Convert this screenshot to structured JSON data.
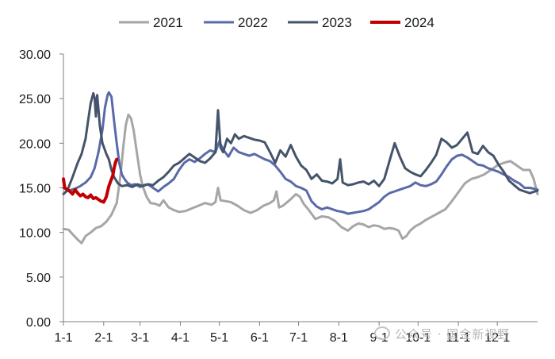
{
  "chart_data": {
    "type": "line",
    "title": "",
    "xlabel": "",
    "ylabel": "",
    "ylim": [
      0,
      30
    ],
    "yticks": [
      "0.00",
      "5.00",
      "10.00",
      "15.00",
      "20.00",
      "25.00",
      "30.00"
    ],
    "x_unit": "day of year",
    "x_tick_labels": [
      "1-1",
      "2-1",
      "3-1",
      "4-1",
      "5-1",
      "6-1",
      "7-1",
      "8-1",
      "9-1",
      "10-1",
      "11-1",
      "12-1"
    ],
    "x_tick_days": [
      1,
      32,
      60,
      91,
      121,
      152,
      182,
      213,
      244,
      274,
      305,
      335
    ],
    "xlim": [
      1,
      366
    ],
    "grid": false,
    "legend_position": "top",
    "series": [
      {
        "name": "2021",
        "color": "#a6a6a6",
        "points": [
          [
            1,
            10.4
          ],
          [
            5,
            10.3
          ],
          [
            8,
            9.8
          ],
          [
            12,
            9.2
          ],
          [
            15,
            8.8
          ],
          [
            18,
            9.6
          ],
          [
            22,
            10.0
          ],
          [
            26,
            10.5
          ],
          [
            30,
            10.7
          ],
          [
            34,
            11.2
          ],
          [
            38,
            12.0
          ],
          [
            42,
            13.3
          ],
          [
            45,
            16.5
          ],
          [
            47,
            19.5
          ],
          [
            49,
            22.0
          ],
          [
            51,
            23.2
          ],
          [
            53,
            22.8
          ],
          [
            55,
            21.5
          ],
          [
            57,
            19.5
          ],
          [
            60,
            16.5
          ],
          [
            62,
            15.2
          ],
          [
            65,
            14.0
          ],
          [
            68,
            13.3
          ],
          [
            72,
            13.2
          ],
          [
            75,
            13.0
          ],
          [
            78,
            13.6
          ],
          [
            82,
            12.8
          ],
          [
            86,
            12.5
          ],
          [
            90,
            12.3
          ],
          [
            95,
            12.4
          ],
          [
            100,
            12.7
          ],
          [
            105,
            13.0
          ],
          [
            110,
            13.3
          ],
          [
            115,
            13.1
          ],
          [
            118,
            13.4
          ],
          [
            120,
            15.0
          ],
          [
            122,
            13.6
          ],
          [
            126,
            13.5
          ],
          [
            130,
            13.4
          ],
          [
            135,
            13.0
          ],
          [
            140,
            12.5
          ],
          [
            145,
            12.2
          ],
          [
            150,
            12.5
          ],
          [
            155,
            13.0
          ],
          [
            160,
            13.3
          ],
          [
            163,
            13.6
          ],
          [
            165,
            14.6
          ],
          [
            167,
            12.8
          ],
          [
            170,
            13.0
          ],
          [
            175,
            13.6
          ],
          [
            180,
            14.3
          ],
          [
            183,
            14.0
          ],
          [
            186,
            13.2
          ],
          [
            190,
            12.5
          ],
          [
            195,
            11.5
          ],
          [
            200,
            11.8
          ],
          [
            205,
            11.7
          ],
          [
            210,
            11.3
          ],
          [
            215,
            10.6
          ],
          [
            220,
            10.2
          ],
          [
            224,
            10.7
          ],
          [
            228,
            11.0
          ],
          [
            232,
            10.9
          ],
          [
            236,
            10.6
          ],
          [
            240,
            10.8
          ],
          [
            244,
            10.7
          ],
          [
            248,
            10.4
          ],
          [
            252,
            10.5
          ],
          [
            256,
            10.4
          ],
          [
            259,
            10.2
          ],
          [
            262,
            9.3
          ],
          [
            265,
            9.6
          ],
          [
            268,
            10.2
          ],
          [
            272,
            10.7
          ],
          [
            276,
            11.0
          ],
          [
            280,
            11.4
          ],
          [
            285,
            11.8
          ],
          [
            290,
            12.2
          ],
          [
            295,
            12.6
          ],
          [
            300,
            13.5
          ],
          [
            305,
            14.5
          ],
          [
            310,
            15.5
          ],
          [
            315,
            16.0
          ],
          [
            320,
            16.2
          ],
          [
            325,
            16.5
          ],
          [
            330,
            17.0
          ],
          [
            335,
            17.5
          ],
          [
            340,
            17.8
          ],
          [
            345,
            18.0
          ],
          [
            350,
            17.5
          ],
          [
            355,
            17.0
          ],
          [
            360,
            17.0
          ],
          [
            363,
            16.0
          ],
          [
            366,
            14.3
          ]
        ]
      },
      {
        "name": "2022",
        "color": "#5a6aa8",
        "points": [
          [
            1,
            15.0
          ],
          [
            5,
            14.7
          ],
          [
            10,
            14.9
          ],
          [
            14,
            15.2
          ],
          [
            18,
            15.6
          ],
          [
            22,
            16.2
          ],
          [
            25,
            17.2
          ],
          [
            28,
            19.0
          ],
          [
            31,
            21.5
          ],
          [
            33,
            24.0
          ],
          [
            35,
            25.4
          ],
          [
            36,
            25.7
          ],
          [
            38,
            25.2
          ],
          [
            40,
            22.5
          ],
          [
            42,
            20.0
          ],
          [
            44,
            17.8
          ],
          [
            46,
            16.5
          ],
          [
            48,
            16.0
          ],
          [
            50,
            15.6
          ],
          [
            53,
            15.3
          ],
          [
            56,
            15.4
          ],
          [
            60,
            15.1
          ],
          [
            63,
            15.3
          ],
          [
            66,
            15.4
          ],
          [
            70,
            15.0
          ],
          [
            74,
            14.6
          ],
          [
            78,
            15.1
          ],
          [
            82,
            15.5
          ],
          [
            86,
            16.0
          ],
          [
            90,
            17.0
          ],
          [
            94,
            17.8
          ],
          [
            98,
            18.2
          ],
          [
            102,
            17.9
          ],
          [
            106,
            18.3
          ],
          [
            110,
            18.8
          ],
          [
            114,
            19.2
          ],
          [
            118,
            19.0
          ],
          [
            121,
            20.2
          ],
          [
            124,
            19.3
          ],
          [
            128,
            18.5
          ],
          [
            132,
            19.5
          ],
          [
            136,
            19.0
          ],
          [
            140,
            18.8
          ],
          [
            144,
            18.6
          ],
          [
            148,
            18.8
          ],
          [
            152,
            18.5
          ],
          [
            156,
            18.2
          ],
          [
            160,
            18.0
          ],
          [
            164,
            17.5
          ],
          [
            168,
            16.8
          ],
          [
            172,
            16.0
          ],
          [
            176,
            15.7
          ],
          [
            180,
            15.2
          ],
          [
            184,
            15.0
          ],
          [
            188,
            14.7
          ],
          [
            192,
            13.5
          ],
          [
            196,
            12.9
          ],
          [
            200,
            12.6
          ],
          [
            204,
            12.8
          ],
          [
            208,
            12.6
          ],
          [
            212,
            12.4
          ],
          [
            216,
            12.3
          ],
          [
            220,
            12.1
          ],
          [
            224,
            12.2
          ],
          [
            228,
            12.3
          ],
          [
            232,
            12.4
          ],
          [
            236,
            12.6
          ],
          [
            240,
            13.0
          ],
          [
            244,
            13.4
          ],
          [
            248,
            14.0
          ],
          [
            252,
            14.4
          ],
          [
            256,
            14.6
          ],
          [
            260,
            14.8
          ],
          [
            264,
            15.0
          ],
          [
            268,
            15.2
          ],
          [
            272,
            15.6
          ],
          [
            276,
            15.3
          ],
          [
            280,
            15.2
          ],
          [
            284,
            15.4
          ],
          [
            288,
            15.7
          ],
          [
            292,
            16.5
          ],
          [
            296,
            17.4
          ],
          [
            300,
            18.2
          ],
          [
            304,
            18.6
          ],
          [
            308,
            18.7
          ],
          [
            312,
            18.4
          ],
          [
            316,
            18.0
          ],
          [
            320,
            17.6
          ],
          [
            324,
            17.5
          ],
          [
            328,
            17.2
          ],
          [
            332,
            17.0
          ],
          [
            336,
            16.8
          ],
          [
            340,
            16.5
          ],
          [
            344,
            16.2
          ],
          [
            348,
            15.8
          ],
          [
            352,
            15.5
          ],
          [
            356,
            15.0
          ],
          [
            360,
            15.0
          ],
          [
            366,
            14.8
          ]
        ]
      },
      {
        "name": "2023",
        "color": "#44546a",
        "points": [
          [
            1,
            14.3
          ],
          [
            4,
            14.7
          ],
          [
            8,
            16.2
          ],
          [
            12,
            17.8
          ],
          [
            15,
            18.8
          ],
          [
            18,
            20.5
          ],
          [
            20,
            22.5
          ],
          [
            22,
            24.5
          ],
          [
            24,
            25.6
          ],
          [
            25,
            25.1
          ],
          [
            26,
            23.0
          ],
          [
            27,
            25.4
          ],
          [
            29,
            22.0
          ],
          [
            31,
            20.0
          ],
          [
            34,
            18.8
          ],
          [
            36,
            18.2
          ],
          [
            38,
            17.0
          ],
          [
            40,
            16.2
          ],
          [
            43,
            15.5
          ],
          [
            46,
            15.2
          ],
          [
            50,
            15.3
          ],
          [
            54,
            15.1
          ],
          [
            58,
            15.4
          ],
          [
            62,
            15.2
          ],
          [
            66,
            15.4
          ],
          [
            70,
            15.3
          ],
          [
            74,
            15.8
          ],
          [
            78,
            16.2
          ],
          [
            82,
            16.8
          ],
          [
            86,
            17.5
          ],
          [
            90,
            17.8
          ],
          [
            94,
            18.3
          ],
          [
            98,
            18.8
          ],
          [
            102,
            18.4
          ],
          [
            106,
            18.0
          ],
          [
            110,
            17.8
          ],
          [
            114,
            18.3
          ],
          [
            118,
            19.0
          ],
          [
            120,
            23.7
          ],
          [
            122,
            19.5
          ],
          [
            124,
            19.0
          ],
          [
            127,
            20.5
          ],
          [
            130,
            20.0
          ],
          [
            133,
            21.0
          ],
          [
            136,
            20.5
          ],
          [
            140,
            20.8
          ],
          [
            144,
            20.6
          ],
          [
            148,
            20.4
          ],
          [
            152,
            20.3
          ],
          [
            156,
            20.1
          ],
          [
            160,
            19.0
          ],
          [
            164,
            17.8
          ],
          [
            168,
            19.2
          ],
          [
            172,
            18.5
          ],
          [
            176,
            19.8
          ],
          [
            180,
            18.5
          ],
          [
            184,
            17.5
          ],
          [
            188,
            17.0
          ],
          [
            192,
            16.0
          ],
          [
            196,
            16.5
          ],
          [
            200,
            15.8
          ],
          [
            204,
            15.7
          ],
          [
            208,
            15.5
          ],
          [
            212,
            16.0
          ],
          [
            214,
            18.2
          ],
          [
            216,
            15.6
          ],
          [
            220,
            15.3
          ],
          [
            224,
            15.4
          ],
          [
            228,
            15.6
          ],
          [
            232,
            15.7
          ],
          [
            236,
            15.4
          ],
          [
            240,
            15.8
          ],
          [
            244,
            15.2
          ],
          [
            248,
            16.0
          ],
          [
            252,
            18.0
          ],
          [
            256,
            20.0
          ],
          [
            260,
            18.5
          ],
          [
            264,
            17.2
          ],
          [
            268,
            16.8
          ],
          [
            272,
            16.5
          ],
          [
            276,
            16.3
          ],
          [
            280,
            17.0
          ],
          [
            284,
            17.8
          ],
          [
            288,
            18.7
          ],
          [
            292,
            20.5
          ],
          [
            296,
            20.1
          ],
          [
            300,
            19.5
          ],
          [
            304,
            19.8
          ],
          [
            308,
            20.5
          ],
          [
            312,
            21.2
          ],
          [
            316,
            19.0
          ],
          [
            320,
            18.8
          ],
          [
            324,
            19.7
          ],
          [
            328,
            19.0
          ],
          [
            332,
            18.6
          ],
          [
            336,
            17.6
          ],
          [
            340,
            16.8
          ],
          [
            344,
            15.8
          ],
          [
            348,
            15.3
          ],
          [
            352,
            14.8
          ],
          [
            356,
            14.6
          ],
          [
            360,
            14.4
          ],
          [
            366,
            14.7
          ]
        ]
      },
      {
        "name": "2024",
        "color": "#c00000",
        "points": [
          [
            1,
            16.0
          ],
          [
            2,
            15.0
          ],
          [
            4,
            14.8
          ],
          [
            6,
            14.6
          ],
          [
            8,
            14.3
          ],
          [
            10,
            14.8
          ],
          [
            12,
            14.4
          ],
          [
            14,
            14.1
          ],
          [
            16,
            14.3
          ],
          [
            18,
            14.0
          ],
          [
            20,
            13.9
          ],
          [
            22,
            14.2
          ],
          [
            24,
            13.8
          ],
          [
            26,
            13.9
          ],
          [
            28,
            13.7
          ],
          [
            30,
            13.5
          ],
          [
            32,
            13.4
          ],
          [
            34,
            14.0
          ],
          [
            36,
            15.2
          ],
          [
            38,
            16.0
          ],
          [
            39,
            16.4
          ],
          [
            40,
            17.2
          ],
          [
            41,
            17.8
          ],
          [
            42,
            18.2
          ]
        ]
      }
    ]
  },
  "watermark": {
    "text": "公众号 · 国金新视野"
  }
}
